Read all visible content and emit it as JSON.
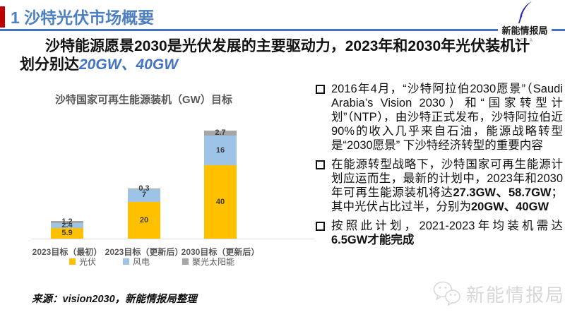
{
  "header": {
    "title": "1 沙特光伏市场概要"
  },
  "logo": {
    "name": "新能情报局",
    "sub": "NEIA"
  },
  "headline": {
    "black": "沙特能源愿景2030是光伏发展的主要驱动力，2023年和2030年光伏装机计划分别达",
    "blue": "20GW、40GW"
  },
  "chart_data": {
    "type": "bar",
    "stacked": true,
    "title": "沙特国家可再生能源装机（GW）目标",
    "categories": [
      "2023目标（最初）",
      "2023目标（更新后）",
      "2030目标（更新后）"
    ],
    "series": [
      {
        "name": "光伏",
        "color": "#FFC000",
        "values": [
          5.9,
          20,
          40
        ]
      },
      {
        "name": "风电",
        "color": "#9DC3E6",
        "values": [
          2.4,
          7,
          16
        ]
      },
      {
        "name": "聚光太阳能",
        "color": "#A6A6A6",
        "values": [
          1.2,
          0.3,
          2.7
        ]
      }
    ],
    "totals": [
      9.5,
      27.3,
      58.7
    ],
    "unit": "GW",
    "ylim": [
      0,
      60
    ],
    "grid": false,
    "legend_position": "bottom"
  },
  "bullets": [
    [
      {
        "t": "2016年4月，“沙特阿拉伯2030愿景”（Saudi Arabia’s Vision 2030）和“国家转型计划”（NTP），由沙特正式发布，沙特阿拉伯近90%的收入几乎来自石油，能源战略转型是“2030愿景” 下沙特经济转型的重要内容",
        "b": false
      }
    ],
    [
      {
        "t": "在能源转型战略下，沙特国家可再生能源计划应运而生，最新的计划中，2023年和2030年可再生能源装机将达",
        "b": false
      },
      {
        "t": "27.3GW、58.7GW",
        "b": true
      },
      {
        "t": "；其中光伏占比过半，分别为",
        "b": false
      },
      {
        "t": "20GW、40GW",
        "b": true
      }
    ],
    [
      {
        "t": "按照此计划，2021-2023年均装机需达",
        "b": false
      },
      {
        "t": "6.5GW才能完成",
        "b": true
      }
    ]
  ],
  "source": "来源：vision2030，新能情报局整理",
  "watermark": "新能情报局",
  "colors": {
    "accent_red": "#C00000",
    "header_blue": "#4D80C0",
    "line_blue": "#4472C4",
    "pv_yellow": "#FFC000",
    "wind_blue": "#9DC3E6",
    "csp_gray": "#A6A6A6",
    "feather_blue": "#2B2BB4",
    "watermark_gray": "#D8D8D8"
  }
}
